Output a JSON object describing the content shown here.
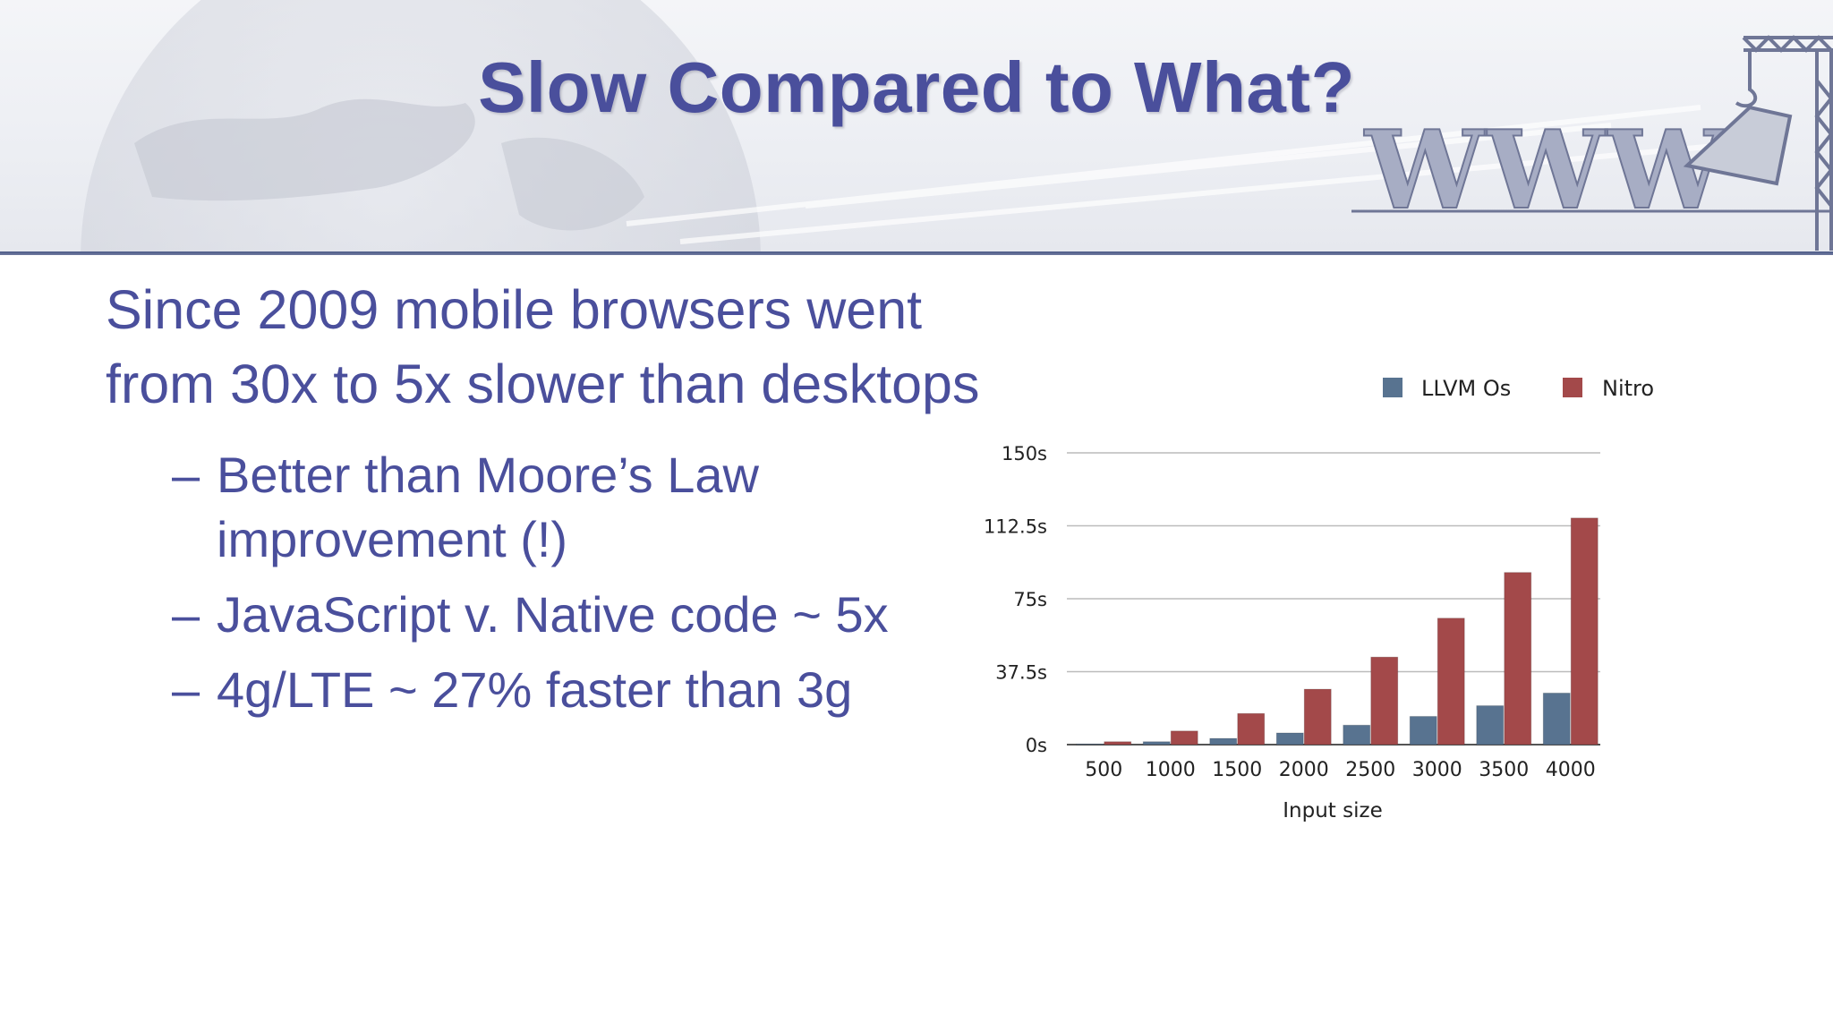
{
  "slide": {
    "title": "Slow Compared to What?",
    "main_point": "Since 2009 mobile browsers went from 30x to 5x slower than desktops",
    "sub_points": [
      "Better than Moore’s Law improvement (!)",
      "JavaScript v. Native code ~ 5x",
      "4g/LTE ~ 27% faster than 3g"
    ],
    "dash": "–",
    "banner_logo_text": "WWW",
    "colors": {
      "title": "#4a4f9c",
      "llvm": "#587390",
      "nitro": "#a3494a"
    }
  },
  "chart_data": {
    "type": "bar",
    "title": "",
    "xlabel": "Input size",
    "ylabel": "",
    "categories": [
      "500",
      "1000",
      "1500",
      "2000",
      "2500",
      "3000",
      "3500",
      "4000"
    ],
    "series": [
      {
        "name": "LLVM Os",
        "color": "#587390",
        "values": [
          0.3,
          1.5,
          3.2,
          6.0,
          10.0,
          14.5,
          20.0,
          26.5
        ]
      },
      {
        "name": "Nitro",
        "color": "#a3494a",
        "values": [
          1.5,
          7.0,
          16.0,
          28.5,
          45.0,
          65.0,
          88.5,
          116.5
        ]
      }
    ],
    "ylim": [
      0,
      150
    ],
    "yticks": [
      {
        "value": 0,
        "label": "0s"
      },
      {
        "value": 37.5,
        "label": "37.5s"
      },
      {
        "value": 75,
        "label": "75s"
      },
      {
        "value": 112.5,
        "label": "112.5s"
      },
      {
        "value": 150,
        "label": "150s"
      }
    ],
    "grid": true,
    "legend_position": "top-right"
  }
}
